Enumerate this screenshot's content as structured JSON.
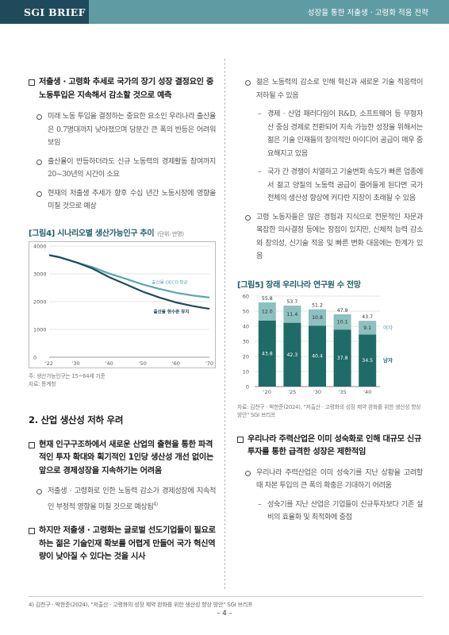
{
  "header": {
    "brand": "SGI BRIEF",
    "title": "성장을 통한 저출생 · 고령화 적응 전략"
  },
  "left": {
    "h1": "저출생 · 고령화 추세로 국가의 장기 성장 결정요인 중 노동투입은 지속해서 감소할 것으로 예측",
    "c1": "미래 노동 투입을 결정하는 중요한 요소인 우리나라 출산율은 0.7명대까지 낮아졌으며 당분간 큰 폭의 반등은 어려워 보임",
    "c2": "출산율이 반등하더라도 신규 노동력의 경제활동 참여까지 20~30년의 시간이 소요",
    "c3": "현재의 저출생 추세가 향후 수십 년간 노동시장에 영향을 미칠 것으로 예상",
    "fig4": {
      "title": "[그림4] 시나리오별 생산가능인구 추이",
      "unit": "(단위: 만명)",
      "note1": "주: 생산가능인구는 15~64세 기준",
      "note2": "자료: 통계청"
    },
    "sec2": "2. 산업 생산성 저하 우려",
    "h2": "현재 인구구조하에서 새로운 산업의 출현을 통한 파격적인 투자 확대와 획기적인 1인당 생산성 개선 없이는 앞으로 경제성장을 지속하기는 어려움",
    "c4": "저출생 · 고령화로 인한 노동력 감소가 경제성장에 지속적인 부정적 영향을 미칠 것으로 예상됨",
    "c4_sup": "4)",
    "h3": "하지만 저출생 · 고령화는 글로벌 선도기업들이 필요로 하는 젊은 기술인재 확보를 어렵게 만들어 국가 혁신역량이 낮아질 수 있다는 것을 시사"
  },
  "right": {
    "c1": "젊은 노동력의 감소로 인해 혁신과 새로운 기술 적응력이 저하될 수 있음",
    "d1": "경제 · 산업 패러다임이 R&D, 소프트웨어 등 무형자산 중심 경제로 전환되어 지속 가능한 성장을 위해서는 젊은 기술 인재들의 창의적인 아이디어 공급이 매우 중요해지고 있음",
    "d2": "국가 간 경쟁이 치열하고 기술변화 속도가 빠른 업종에서 젊고 양질의 노동력 공급이 줄어들게 된다면 국가 전체의 생산성 향상에 커다란 지장이 초래될 수 있음",
    "c2": "고령 노동자들은 많은 경험과 지식으로 전문적인 자문과 복잡한 의사결정 등에는 장점이 있지만, 신체적 능력 감소와 창의성, 신기술 적응 및 빠른 변화 대응에는 한계가 있음",
    "fig5": {
      "title": "[그림5] 장래 우리나라 연구원 수 전망",
      "note": "자료: 김천구 · 박한준(2024), \"저출산 · 고령화의 성장 제약 완화를 위한 생산성 향상 방안\" SGI 브리프"
    },
    "h1": "우리나라 주력산업은 이미 성숙화로 인해 대규모 신규투자를 통한 급격한 성장은 제한적임",
    "c3": "우리나라 주력산업은 이미 성숙기를 지난 상황을 고려할 때 자본 투입의 큰 폭의 확충은 기대하기 어려움",
    "d3": "성숙기를 지난 산업은 기업들이 신규투자보다 기존 설비의 효율화 및 최적화에 중점"
  },
  "footnote": "4) 김천구 · 박한준(2024), \"저출산 · 고령화의 성장 제약 완화를 위한 생산성 향상 방안\" SGI 브리프",
  "page": "– 4 –",
  "chart_data": [
    {
      "type": "line",
      "title": "[그림4] 시나리오별 생산가능인구 추이",
      "unit": "(단위: 만명)",
      "x": [
        2022,
        2025,
        2030,
        2035,
        2040,
        2045,
        2050,
        2055,
        2060,
        2065,
        2070
      ],
      "x_ticks": [
        "'22",
        "'30",
        "'40",
        "'50",
        "'60",
        "'70"
      ],
      "ylim": [
        0,
        4000
      ],
      "y_ticks": [
        "0",
        "1000",
        "2000",
        "3000",
        "4000"
      ],
      "series": [
        {
          "name": "출산율 OECD 평균",
          "color": "#5aa5b0",
          "values": [
            3674,
            3600,
            3417,
            3240,
            3010,
            2820,
            2620,
            2460,
            2320,
            2220,
            2150
          ]
        },
        {
          "name": "출산율 현수준 유지",
          "color": "#1f4a5c",
          "values": [
            3674,
            3600,
            3417,
            3190,
            2880,
            2620,
            2360,
            2150,
            1970,
            1840,
            1740
          ]
        }
      ]
    },
    {
      "type": "bar",
      "title": "[그림5] 장래 우리나라 연구원 수 전망",
      "categories": [
        "'20",
        "'25",
        "'30",
        "'35",
        "'40"
      ],
      "ylim": [
        0,
        60
      ],
      "y_ticks": [
        "0",
        "10",
        "20",
        "30",
        "40",
        "50",
        "60"
      ],
      "stacked": true,
      "series": [
        {
          "name": "남자",
          "color": "#1f6b68",
          "values": [
            43.8,
            42.3,
            40.4,
            37.8,
            34.5
          ],
          "labels": [
            "43.8",
            "42.3",
            "40.4",
            "37.8",
            "34.5"
          ]
        },
        {
          "name": "여자",
          "color": "#8cc1c0",
          "values": [
            12.0,
            11.4,
            10.8,
            10.1,
            9.1
          ],
          "labels": [
            "12.0",
            "11.4",
            "10.8",
            "10.1",
            "9.1"
          ]
        }
      ],
      "totals": [
        "55.8",
        "53.7",
        "51.2",
        "47.9",
        "43.7"
      ]
    }
  ]
}
